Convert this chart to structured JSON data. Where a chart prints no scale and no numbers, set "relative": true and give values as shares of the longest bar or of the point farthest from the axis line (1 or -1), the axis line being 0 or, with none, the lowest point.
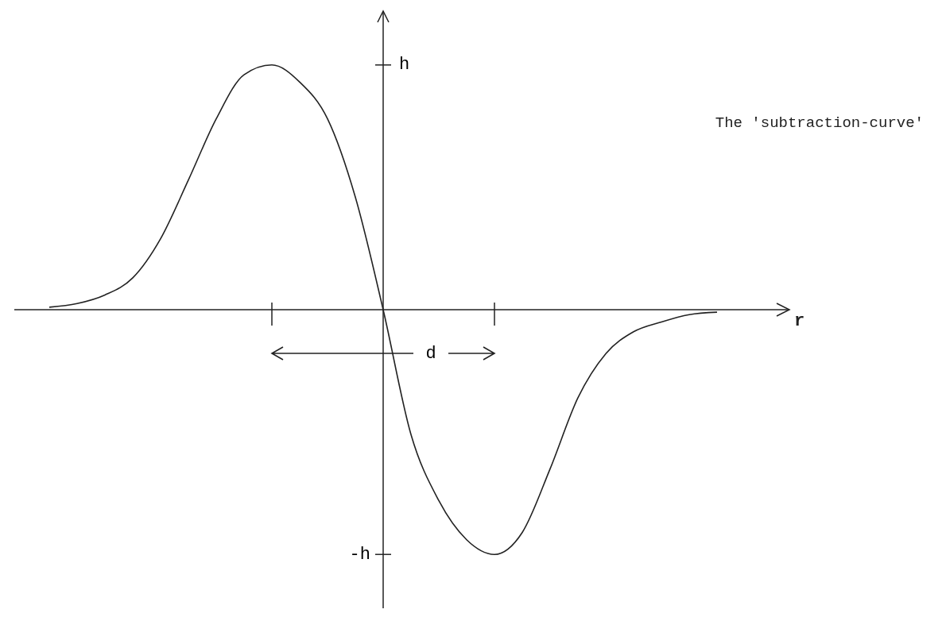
{
  "chart_data": {
    "type": "line",
    "relative": true,
    "title": "The 'subtraction-curve'",
    "xlabel": "r",
    "annotations": [
      "d",
      "h",
      "-h"
    ],
    "categories": [
      null,
      null,
      null,
      null,
      null,
      null,
      null,
      null,
      null,
      null,
      null,
      null,
      null,
      null,
      null,
      null,
      null,
      null,
      null,
      null,
      null,
      null,
      null,
      null,
      null
    ],
    "series": [
      {
        "color": "#222222",
        "values": [
          0.01,
          0.025,
          0.06,
          0.13,
          0.29,
          0.53,
          0.78,
          0.96,
          1,
          0.93,
          0.78,
          0.46,
          0,
          -0.51,
          -0.78,
          -0.94,
          -1,
          -0.91,
          -0.65,
          -0.36,
          -0.18,
          -0.09,
          -0.05,
          -0.02,
          -0.01
        ]
      }
    ],
    "marker": "none",
    "line_style": "solid"
  }
}
